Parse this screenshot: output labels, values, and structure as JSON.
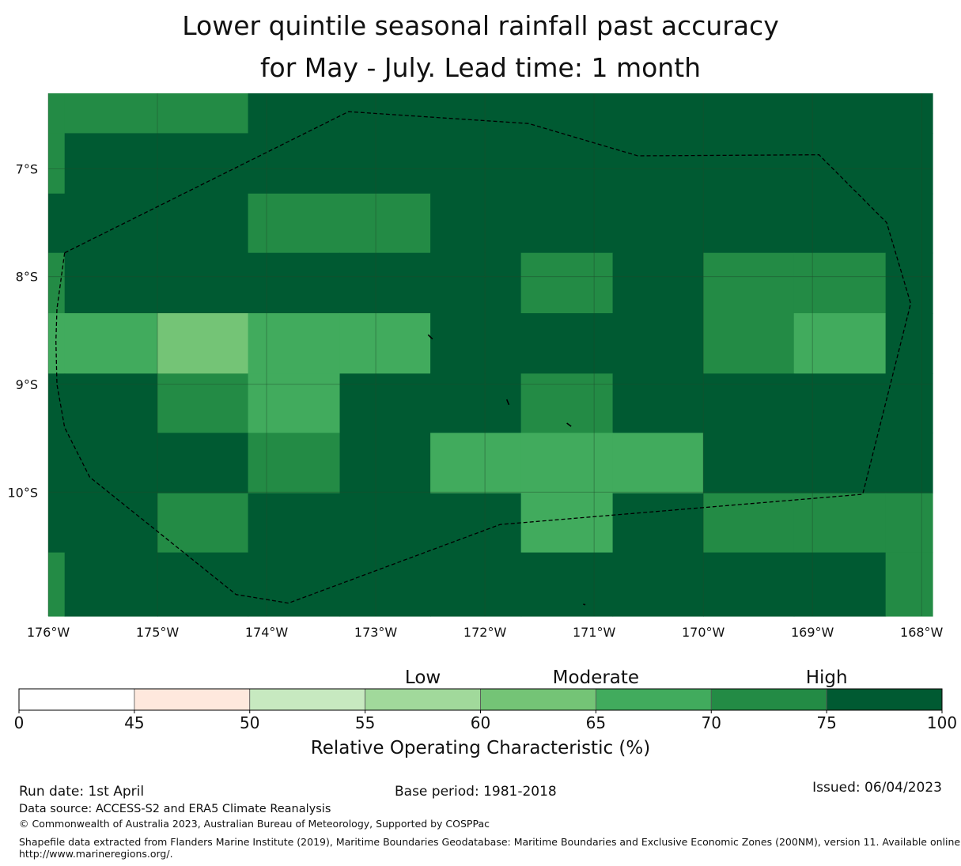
{
  "title": {
    "line1": "Lower quintile seasonal rainfall past accuracy",
    "line2": "for May - July. Lead time: 1 month"
  },
  "colors": {
    "c45": "#ffffff",
    "c50": "#fee8dd",
    "c55": "#c7e9c0",
    "c60": "#a1d99b",
    "c65": "#74c476",
    "c70": "#41ab5d",
    "c75": "#238b45",
    "c100": "#005a32",
    "grid": "#1f4a2a",
    "boundary": "#000000"
  },
  "map": {
    "lon_range": [
      -176.0,
      -167.9
    ],
    "lat_range": [
      -11.15,
      -6.3
    ],
    "col_edges": [
      -176.0,
      -175.85,
      -175.0,
      -174.17,
      -173.33,
      -172.5,
      -171.67,
      -170.83,
      -170.0,
      -169.17,
      -168.33,
      -167.9
    ],
    "row_edges": [
      -6.3,
      -6.67,
      -7.23,
      -7.78,
      -8.34,
      -8.9,
      -9.45,
      -10.01,
      -10.56,
      -11.15
    ],
    "cells": [
      [
        "c75",
        "c75",
        "c75",
        "c100",
        "c100",
        "c100",
        "c100",
        "c100",
        "c100",
        "c100",
        "c100"
      ],
      [
        "c75",
        "c100",
        "c100",
        "c100",
        "c100",
        "c100",
        "c100",
        "c100",
        "c100",
        "c100",
        "c100"
      ],
      [
        "c100",
        "c100",
        "c100",
        "c75",
        "c75",
        "c100",
        "c100",
        "c100",
        "c100",
        "c100",
        "c100"
      ],
      [
        "c75",
        "c100",
        "c100",
        "c100",
        "c100",
        "c100",
        "c75",
        "c100",
        "c75",
        "c75",
        "c100"
      ],
      [
        "c70",
        "c70",
        "c65",
        "c70",
        "c70",
        "c100",
        "c100",
        "c100",
        "c75",
        "c70",
        "c100"
      ],
      [
        "c100",
        "c100",
        "c75",
        "c70",
        "c100",
        "c100",
        "c75",
        "c100",
        "c100",
        "c100",
        "c100"
      ],
      [
        "c100",
        "c100",
        "c100",
        "c75",
        "c100",
        "c70",
        "c70",
        "c70",
        "c100",
        "c100",
        "c100"
      ],
      [
        "c100",
        "c100",
        "c75",
        "c100",
        "c100",
        "c100",
        "c70",
        "c100",
        "c75",
        "c75",
        "c75"
      ],
      [
        "c75",
        "c100",
        "c100",
        "c100",
        "c100",
        "c100",
        "c100",
        "c100",
        "c100",
        "c100",
        "c75"
      ]
    ],
    "eez_boundary": [
      [
        -175.85,
        -7.78
      ],
      [
        -175.92,
        -8.3
      ],
      [
        -175.93,
        -8.6
      ],
      [
        -175.92,
        -9.0
      ],
      [
        -175.85,
        -9.4
      ],
      [
        -175.62,
        -9.86
      ],
      [
        -174.28,
        -10.95
      ],
      [
        -173.8,
        -11.03
      ],
      [
        -171.86,
        -10.3
      ],
      [
        -168.54,
        -10.02
      ],
      [
        -168.1,
        -8.25
      ],
      [
        -168.32,
        -7.5
      ],
      [
        -168.94,
        -6.87
      ],
      [
        -170.6,
        -6.88
      ],
      [
        -171.6,
        -6.58
      ],
      [
        -173.25,
        -6.47
      ],
      [
        -175.85,
        -7.78
      ]
    ],
    "islands": [
      [
        [
          -172.52,
          -8.54
        ],
        [
          -172.48,
          -8.58
        ]
      ],
      [
        [
          -171.8,
          -9.14
        ],
        [
          -171.78,
          -9.19
        ]
      ],
      [
        [
          -171.25,
          -9.36
        ],
        [
          -171.21,
          -9.39
        ]
      ],
      [
        [
          -171.1,
          -11.04
        ],
        [
          -171.08,
          -11.045
        ]
      ]
    ],
    "x_ticks": [
      {
        "value": -176,
        "label": "176°W"
      },
      {
        "value": -175,
        "label": "175°W"
      },
      {
        "value": -174,
        "label": "174°W"
      },
      {
        "value": -173,
        "label": "173°W"
      },
      {
        "value": -172,
        "label": "172°W"
      },
      {
        "value": -171,
        "label": "171°W"
      },
      {
        "value": -170,
        "label": "170°W"
      },
      {
        "value": -169,
        "label": "169°W"
      },
      {
        "value": -168,
        "label": "168°W"
      }
    ],
    "y_ticks": [
      {
        "value": -7,
        "label": "7°S"
      },
      {
        "value": -8,
        "label": "8°S"
      },
      {
        "value": -9,
        "label": "9°S"
      },
      {
        "value": -10,
        "label": "10°S"
      }
    ]
  },
  "colorbar": {
    "bounds": [
      0,
      45,
      50,
      55,
      60,
      65,
      70,
      75,
      100
    ],
    "tick_labels": [
      "0",
      "45",
      "50",
      "55",
      "60",
      "65",
      "70",
      "75",
      "100"
    ],
    "segment_colors": [
      "c45",
      "c50",
      "c55",
      "c60",
      "c65",
      "c70",
      "c75",
      "c100"
    ],
    "categories": [
      {
        "label": "Low",
        "value": 57.5
      },
      {
        "label": "Moderate",
        "value": 65
      },
      {
        "label": "High",
        "value": 75
      }
    ],
    "title": "Relative Operating Characteristic (%)"
  },
  "footer": {
    "run_date": "Run date: 1st April",
    "base_period": "Base period: 1981-2018",
    "issued": "Issued: 06/04/2023",
    "data_source": "Data source: ACCESS-S2 and ERA5 Climate Reanalysis",
    "copyright": "© Commonwealth of Australia 2023, Australian Bureau of Meteorology, Supported by COSPPac",
    "shapefile_line1": "Shapefile data extracted from Flanders Marine Institute (2019), Maritime Boundaries Geodatabase: Maritime Boundaries and Exclusive Economic Zones (200NM), version 11. Available online at",
    "shapefile_line2": "http://www.marineregions.org/."
  }
}
